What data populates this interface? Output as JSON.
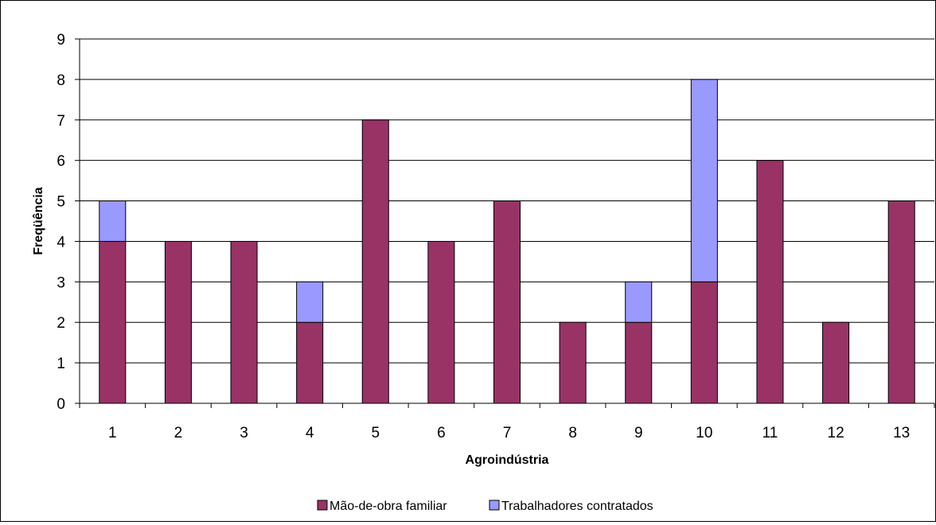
{
  "chart_data": {
    "type": "bar",
    "stacked": true,
    "title": "",
    "xlabel": "Agroindústria",
    "ylabel": "Freqüência",
    "categories": [
      "1",
      "2",
      "3",
      "4",
      "5",
      "6",
      "7",
      "8",
      "9",
      "10",
      "11",
      "12",
      "13"
    ],
    "series": [
      {
        "name": "Mão-de-obra familiar",
        "color": "#993366",
        "values": [
          4,
          4,
          4,
          2,
          7,
          4,
          5,
          2,
          2,
          3,
          6,
          2,
          5
        ]
      },
      {
        "name": "Trabalhadores contratados",
        "color": "#9999ff",
        "values": [
          1,
          0,
          0,
          1,
          0,
          0,
          0,
          0,
          1,
          5,
          0,
          0,
          0
        ]
      }
    ],
    "ylim": [
      0,
      9
    ],
    "yticks": [
      0,
      1,
      2,
      3,
      4,
      5,
      6,
      7,
      8,
      9
    ],
    "grid": true,
    "legend_position": "bottom"
  }
}
